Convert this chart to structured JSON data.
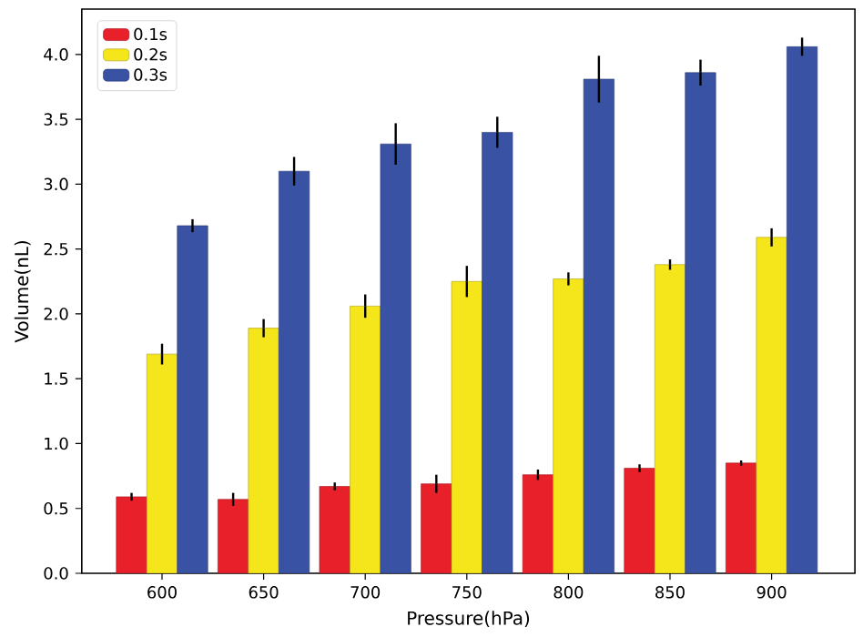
{
  "chart_data": {
    "type": "bar",
    "xlabel": "Pressure(hPa)",
    "ylabel": "Volume(nL)",
    "categories": [
      "600",
      "650",
      "700",
      "750",
      "800",
      "850",
      "900"
    ],
    "series": [
      {
        "name": "0.1s",
        "color": "#e8202a",
        "values": [
          0.59,
          0.57,
          0.67,
          0.69,
          0.76,
          0.81,
          0.85
        ],
        "errors": [
          0.03,
          0.05,
          0.03,
          0.07,
          0.04,
          0.03,
          0.02
        ]
      },
      {
        "name": "0.2s",
        "color": "#f5e51b",
        "values": [
          1.69,
          1.89,
          2.06,
          2.25,
          2.27,
          2.38,
          2.59
        ],
        "errors": [
          0.08,
          0.07,
          0.09,
          0.12,
          0.05,
          0.04,
          0.07
        ]
      },
      {
        "name": "0.3s",
        "color": "#3a52a3",
        "values": [
          2.68,
          3.1,
          3.31,
          3.4,
          3.81,
          3.86,
          4.06
        ],
        "errors": [
          0.05,
          0.11,
          0.16,
          0.12,
          0.18,
          0.1,
          0.07
        ]
      }
    ],
    "ylim": [
      0,
      4.35
    ],
    "yticks": [
      {
        "value": 0,
        "label": "0.0"
      },
      0.5,
      {
        "value": 1,
        "label": "1.0"
      },
      1.5,
      {
        "value": 2,
        "label": "2.0"
      },
      2.5,
      {
        "value": 3,
        "label": "3.0"
      },
      3.5,
      {
        "value": 4,
        "label": "4.0"
      }
    ],
    "grid": false,
    "legend": "top left"
  }
}
